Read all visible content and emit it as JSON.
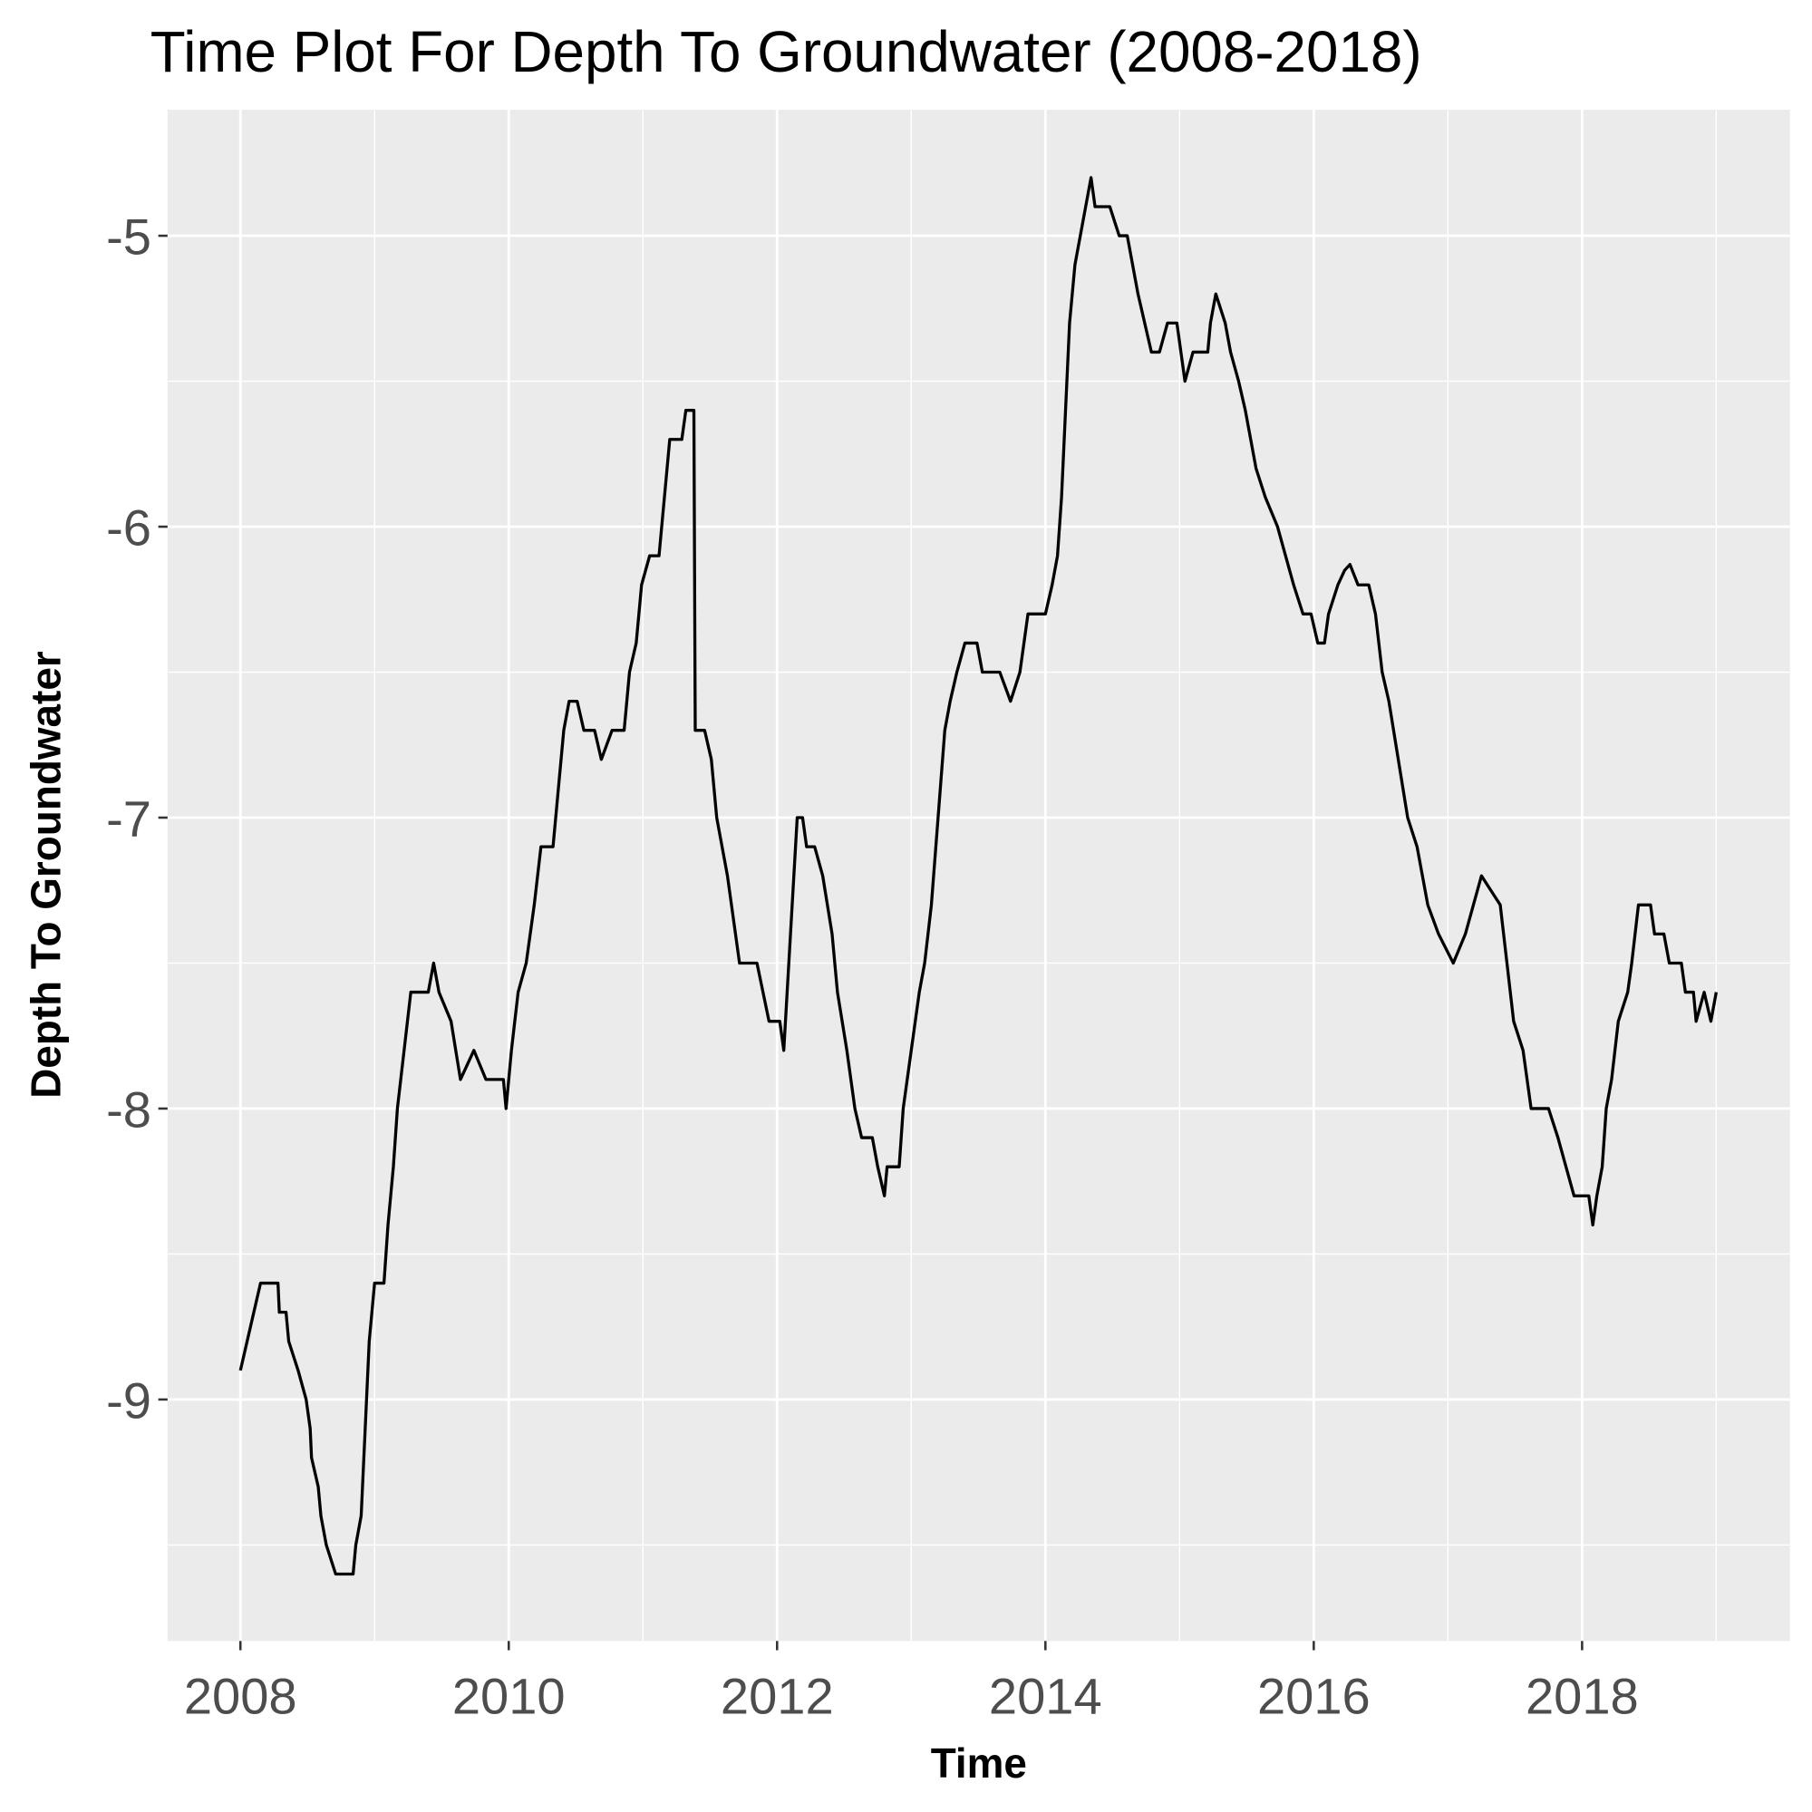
{
  "chart_data": {
    "type": "line",
    "title": "Time Plot For Depth To Groundwater (2008-2018)",
    "x_label": "Time",
    "y_label": "Depth To Groundwater",
    "color": "#000000",
    "grid": true,
    "xlim": [
      2007.457,
      2019.55
    ],
    "ylim": [
      -9.83,
      -4.567
    ],
    "xticks": [
      2008,
      2010,
      2012,
      2014,
      2016,
      2018
    ],
    "yticks": [
      -9,
      -8,
      -7,
      -6,
      -5
    ],
    "x": [
      2008.0,
      2008.1,
      2008.15,
      2008.28,
      2008.29,
      2008.34,
      2008.36,
      2008.43,
      2008.49,
      2008.52,
      2008.53,
      2008.58,
      2008.6,
      2008.64,
      2008.71,
      2008.77,
      2008.84,
      2008.86,
      2008.9,
      2008.93,
      2008.96,
      2009.0,
      2009.07,
      2009.1,
      2009.14,
      2009.17,
      2009.22,
      2009.27,
      2009.4,
      2009.44,
      2009.48,
      2009.57,
      2009.64,
      2009.74,
      2009.83,
      2009.96,
      2009.98,
      2010.02,
      2010.07,
      2010.13,
      2010.19,
      2010.24,
      2010.33,
      2010.37,
      2010.41,
      2010.45,
      2010.51,
      2010.56,
      2010.64,
      2010.69,
      2010.77,
      2010.86,
      2010.9,
      2010.95,
      2010.99,
      2011.05,
      2011.12,
      2011.16,
      2011.2,
      2011.29,
      2011.32,
      2011.38,
      2011.39,
      2011.46,
      2011.51,
      2011.55,
      2011.63,
      2011.72,
      2011.85,
      2011.94,
      2012.02,
      2012.05,
      2012.1,
      2012.15,
      2012.19,
      2012.22,
      2012.28,
      2012.34,
      2012.41,
      2012.45,
      2012.52,
      2012.58,
      2012.63,
      2012.71,
      2012.75,
      2012.8,
      2012.82,
      2012.91,
      2012.94,
      2013.0,
      2013.06,
      2013.1,
      2013.15,
      2013.2,
      2013.25,
      2013.29,
      2013.34,
      2013.4,
      2013.49,
      2013.53,
      2013.66,
      2013.74,
      2013.81,
      2013.87,
      2014.0,
      2014.05,
      2014.09,
      2014.12,
      2014.15,
      2014.18,
      2014.22,
      2014.26,
      2014.3,
      2014.34,
      2014.37,
      2014.48,
      2014.55,
      2014.61,
      2014.65,
      2014.69,
      2014.74,
      2014.79,
      2014.85,
      2014.91,
      2014.98,
      2015.04,
      2015.1,
      2015.21,
      2015.23,
      2015.27,
      2015.34,
      2015.38,
      2015.44,
      2015.49,
      2015.53,
      2015.57,
      2015.64,
      2015.73,
      2015.79,
      2015.85,
      2015.92,
      2015.98,
      2016.03,
      2016.08,
      2016.11,
      2016.18,
      2016.23,
      2016.27,
      2016.33,
      2016.41,
      2016.46,
      2016.51,
      2016.56,
      2016.63,
      2016.7,
      2016.77,
      2016.85,
      2016.93,
      2017.04,
      2017.13,
      2017.19,
      2017.25,
      2017.32,
      2017.39,
      2017.44,
      2017.49,
      2017.56,
      2017.62,
      2017.75,
      2017.82,
      2017.88,
      2017.94,
      2018.05,
      2018.08,
      2018.11,
      2018.15,
      2018.18,
      2018.22,
      2018.27,
      2018.34,
      2018.37,
      2018.42,
      2018.51,
      2018.54,
      2018.61,
      2018.65,
      2018.74,
      2018.77,
      2018.83,
      2018.85,
      2018.91,
      2018.96,
      2019.0
    ],
    "values": [
      -8.9,
      -8.7,
      -8.6,
      -8.6,
      -8.7,
      -8.7,
      -8.8,
      -8.9,
      -9.0,
      -9.1,
      -9.2,
      -9.3,
      -9.4,
      -9.5,
      -9.6,
      -9.6,
      -9.6,
      -9.5,
      -9.4,
      -9.1,
      -8.8,
      -8.6,
      -8.6,
      -8.4,
      -8.2,
      -8.0,
      -7.8,
      -7.6,
      -7.6,
      -7.5,
      -7.6,
      -7.7,
      -7.9,
      -7.8,
      -7.9,
      -7.9,
      -8.0,
      -7.8,
      -7.6,
      -7.5,
      -7.3,
      -7.1,
      -7.1,
      -6.9,
      -6.7,
      -6.6,
      -6.6,
      -6.7,
      -6.7,
      -6.8,
      -6.7,
      -6.7,
      -6.5,
      -6.4,
      -6.2,
      -6.1,
      -6.1,
      -5.9,
      -5.7,
      -5.7,
      -5.6,
      -5.6,
      -6.7,
      -6.7,
      -6.8,
      -7.0,
      -7.2,
      -7.5,
      -7.5,
      -7.7,
      -7.7,
      -7.8,
      -7.4,
      -7.0,
      -7.0,
      -7.1,
      -7.1,
      -7.2,
      -7.4,
      -7.6,
      -7.8,
      -8.0,
      -8.1,
      -8.1,
      -8.2,
      -8.3,
      -8.2,
      -8.2,
      -8.0,
      -7.8,
      -7.6,
      -7.5,
      -7.3,
      -7.0,
      -6.7,
      -6.6,
      -6.5,
      -6.4,
      -6.4,
      -6.5,
      -6.5,
      -6.6,
      -6.5,
      -6.3,
      -6.3,
      -6.2,
      -6.1,
      -5.9,
      -5.6,
      -5.3,
      -5.1,
      -5.0,
      -4.9,
      -4.8,
      -4.9,
      -4.9,
      -5.0,
      -5.0,
      -5.1,
      -5.2,
      -5.3,
      -5.4,
      -5.4,
      -5.3,
      -5.3,
      -5.5,
      -5.4,
      -5.4,
      -5.3,
      -5.2,
      -5.3,
      -5.4,
      -5.5,
      -5.6,
      -5.7,
      -5.8,
      -5.9,
      -6.0,
      -6.1,
      -6.2,
      -6.3,
      -6.3,
      -6.4,
      -6.4,
      -6.3,
      -6.2,
      -6.15,
      -6.13,
      -6.2,
      -6.2,
      -6.3,
      -6.5,
      -6.6,
      -6.8,
      -7.0,
      -7.1,
      -7.3,
      -7.4,
      -7.5,
      -7.4,
      -7.3,
      -7.2,
      -7.25,
      -7.3,
      -7.5,
      -7.7,
      -7.8,
      -8.0,
      -8.0,
      -8.1,
      -8.2,
      -8.3,
      -8.3,
      -8.4,
      -8.3,
      -8.2,
      -8.0,
      -7.9,
      -7.7,
      -7.6,
      -7.5,
      -7.3,
      -7.3,
      -7.4,
      -7.4,
      -7.5,
      -7.5,
      -7.6,
      -7.6,
      -7.7,
      -7.6,
      -7.7,
      -7.6
    ]
  }
}
